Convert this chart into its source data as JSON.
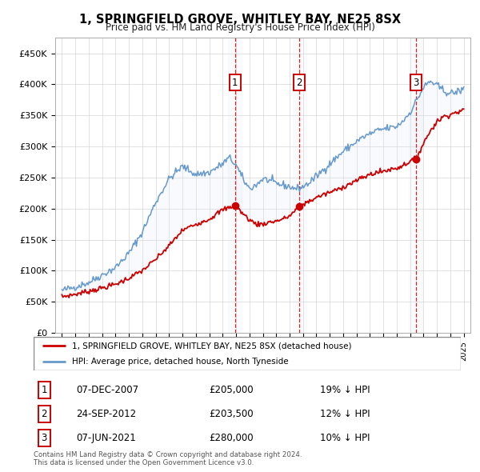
{
  "title": "1, SPRINGFIELD GROVE, WHITLEY BAY, NE25 8SX",
  "subtitle": "Price paid vs. HM Land Registry's House Price Index (HPI)",
  "legend_line1": "1, SPRINGFIELD GROVE, WHITLEY BAY, NE25 8SX (detached house)",
  "legend_line2": "HPI: Average price, detached house, North Tyneside",
  "footer_line1": "Contains HM Land Registry data © Crown copyright and database right 2024.",
  "footer_line2": "This data is licensed under the Open Government Licence v3.0.",
  "sale_color": "#cc0000",
  "hpi_color": "#6699cc",
  "shade_color": "#dce8f5",
  "ytick_labels": [
    "£0",
    "£50K",
    "£100K",
    "£150K",
    "£200K",
    "£250K",
    "£300K",
    "£350K",
    "£400K",
    "£450K"
  ],
  "ytick_values": [
    0,
    50000,
    100000,
    150000,
    200000,
    250000,
    300000,
    350000,
    400000,
    450000
  ],
  "ylim": [
    0,
    475000
  ],
  "xlim_start": 1994.5,
  "xlim_end": 2025.5,
  "sales": [
    {
      "num": 1,
      "year": 2007.92,
      "price": 205000,
      "date": "07-DEC-2007",
      "pct": "19%"
    },
    {
      "num": 2,
      "year": 2012.73,
      "price": 203500,
      "date": "24-SEP-2012",
      "pct": "12%"
    },
    {
      "num": 3,
      "year": 2021.43,
      "price": 280000,
      "date": "07-JUN-2021",
      "pct": "10%"
    }
  ]
}
